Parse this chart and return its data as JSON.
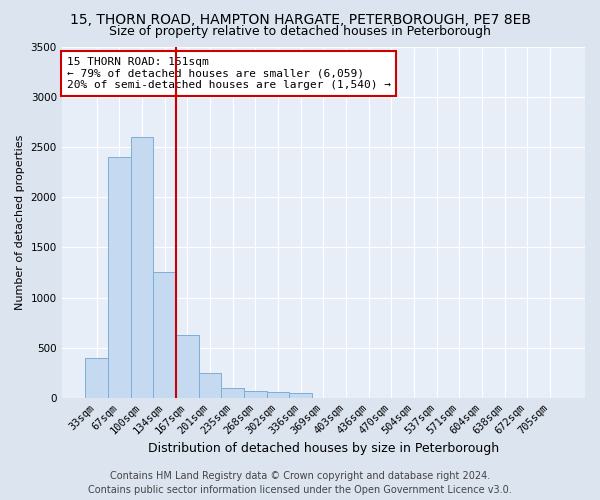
{
  "title1": "15, THORN ROAD, HAMPTON HARGATE, PETERBOROUGH, PE7 8EB",
  "title2": "Size of property relative to detached houses in Peterborough",
  "xlabel": "Distribution of detached houses by size in Peterborough",
  "ylabel": "Number of detached properties",
  "categories": [
    "33sqm",
    "67sqm",
    "100sqm",
    "134sqm",
    "167sqm",
    "201sqm",
    "235sqm",
    "268sqm",
    "302sqm",
    "336sqm",
    "369sqm",
    "403sqm",
    "436sqm",
    "470sqm",
    "504sqm",
    "537sqm",
    "571sqm",
    "604sqm",
    "638sqm",
    "672sqm",
    "705sqm"
  ],
  "values": [
    400,
    2400,
    2600,
    1250,
    630,
    250,
    100,
    70,
    60,
    50,
    0,
    0,
    0,
    0,
    0,
    0,
    0,
    0,
    0,
    0,
    0
  ],
  "bar_color": "#c5d9f0",
  "bar_edge_color": "#7bafd4",
  "vline_x": 3.5,
  "vline_color": "#cc0000",
  "annotation_text": "15 THORN ROAD: 151sqm\n← 79% of detached houses are smaller (6,059)\n20% of semi-detached houses are larger (1,540) →",
  "annotation_box_color": "white",
  "annotation_box_edge": "#cc0000",
  "ylim": [
    0,
    3500
  ],
  "yticks": [
    0,
    500,
    1000,
    1500,
    2000,
    2500,
    3000,
    3500
  ],
  "footer1": "Contains HM Land Registry data © Crown copyright and database right 2024.",
  "footer2": "Contains public sector information licensed under the Open Government Licence v3.0.",
  "bg_color": "#dce4f0",
  "plot_bg_color": "#e8eef8",
  "title1_fontsize": 10,
  "title2_fontsize": 9,
  "xlabel_fontsize": 9,
  "ylabel_fontsize": 8,
  "tick_fontsize": 7.5,
  "footer_fontsize": 7,
  "annot_fontsize": 8
}
